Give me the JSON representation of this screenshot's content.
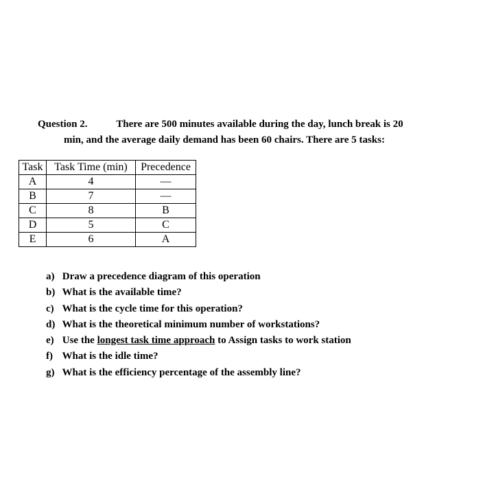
{
  "question": {
    "label": "Question 2.",
    "text_line1": "There are 500 minutes available during the day, lunch break is 20",
    "text_line2": "min, and the average daily demand has been 60 chairs. There are 5 tasks:"
  },
  "table": {
    "headers": {
      "task": "Task",
      "time": "Task Time (min)",
      "precedence": "Precedence"
    },
    "rows": [
      {
        "task": "A",
        "time": "4",
        "precedence": "—"
      },
      {
        "task": "B",
        "time": "7",
        "precedence": "—"
      },
      {
        "task": "C",
        "time": "8",
        "precedence": "B"
      },
      {
        "task": "D",
        "time": "5",
        "precedence": "C"
      },
      {
        "task": "E",
        "time": "6",
        "precedence": "A"
      }
    ]
  },
  "subs": {
    "a": {
      "label": "a)",
      "text": "Draw a precedence diagram of this operation"
    },
    "b": {
      "label": "b)",
      "text": "What is the available time?"
    },
    "c": {
      "label": "c)",
      "text": "What is the cycle time for this operation?"
    },
    "d": {
      "label": "d)",
      "text": "What is the theoretical minimum number of workstations?"
    },
    "e": {
      "label": "e)",
      "pre": "Use the ",
      "u": "longest task time approach",
      "post": " to Assign tasks to work station"
    },
    "f": {
      "label": "f)",
      "text": "What is the idle time?"
    },
    "g": {
      "label": "g)",
      "text": "What is the efficiency percentage of the assembly line?"
    }
  }
}
